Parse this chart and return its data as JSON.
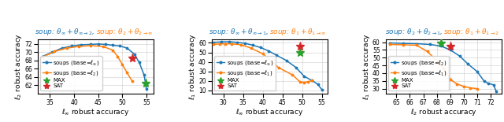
{
  "plots": [
    {
      "title_blue": "soup: $\\theta_{\\infty} + \\theta_{\\infty\\to2}$",
      "title_orange": "soup: $\\theta_2 + \\theta_{2\\to\\infty}$",
      "xlabel": "$\\ell_\\infty$ robust accuracy",
      "ylabel": "$\\ell_2$ robust accuracy",
      "xlim": [
        32.5,
        56.5
      ],
      "ylim": [
        60.0,
        73.2
      ],
      "xticks": [
        35,
        40,
        45,
        50,
        55
      ],
      "yticks": [
        62,
        64,
        66,
        68,
        70,
        72
      ],
      "legend_base1": "soups (base=$\\ell_\\infty$)",
      "legend_base2": "soups (base=$\\ell_2$)",
      "blue_x": [
        33.5,
        35.5,
        37.5,
        39.5,
        41.5,
        43.5,
        45.0,
        46.5,
        48.0,
        49.5,
        51.0,
        52.5,
        53.5,
        54.5,
        55.0
      ],
      "blue_y": [
        69.0,
        70.0,
        71.0,
        71.5,
        71.8,
        71.9,
        72.0,
        71.9,
        71.7,
        71.5,
        71.0,
        69.5,
        67.5,
        64.5,
        61.0
      ],
      "orange_x": [
        33.5,
        36.0,
        38.5,
        41.0,
        43.5,
        46.0,
        48.0,
        49.0,
        50.0,
        51.0,
        52.0
      ],
      "orange_y": [
        68.8,
        70.2,
        71.0,
        71.4,
        71.6,
        71.4,
        70.5,
        69.0,
        67.0,
        65.0,
        63.0
      ],
      "max_x": 54.8,
      "max_y": 62.5,
      "sat_x": 52.0,
      "sat_y": 68.5
    },
    {
      "title_blue": "soup: $\\theta_{\\infty} + \\theta_{\\infty\\to1}$",
      "title_orange": "soup: $\\theta_1 + \\theta_{1\\to\\infty}$",
      "xlabel": "$\\ell_\\infty$ robust accuracy",
      "ylabel": "$\\ell_1$ robust accuracy",
      "xlim": [
        27.0,
        56.5
      ],
      "ylim": [
        7.0,
        64.0
      ],
      "xticks": [
        30,
        35,
        40,
        45,
        50,
        55
      ],
      "yticks": [
        10,
        20,
        30,
        40,
        50,
        60
      ],
      "legend_base1": "soups (base=$\\ell_\\infty$)",
      "legend_base2": "soups (base=$\\ell_1$)",
      "blue_x": [
        27.5,
        29.5,
        31.5,
        33.5,
        35.5,
        37.5,
        39.5,
        41.5,
        43.5,
        46.0,
        48.5,
        50.5,
        52.5,
        54.0,
        55.0
      ],
      "blue_y": [
        60.5,
        61.0,
        61.2,
        60.5,
        59.5,
        57.5,
        55.0,
        51.5,
        47.0,
        41.5,
        34.0,
        25.0,
        20.5,
        16.5,
        11.0
      ],
      "orange_x": [
        27.5,
        29.0,
        30.5,
        32.0,
        34.5,
        37.0,
        40.0,
        44.0,
        47.5,
        49.5,
        50.5,
        51.5,
        52.5
      ],
      "orange_y": [
        58.5,
        58.8,
        59.0,
        59.0,
        58.0,
        54.5,
        48.5,
        34.0,
        26.5,
        19.0,
        18.5,
        19.0,
        20.5
      ],
      "max_x": 49.5,
      "max_y": 50.0,
      "sat_x": 49.5,
      "sat_y": 56.5
    },
    {
      "title_blue": "soup: $\\theta_2 + \\theta_{2\\to1}$",
      "title_orange": "soup: $\\theta_1 + \\theta_{1\\to2}$",
      "xlabel": "$\\ell_2$ robust accuracy",
      "ylabel": "$\\ell_1$ robust accuracy",
      "xlim": [
        64.2,
        72.8
      ],
      "ylim": [
        27.0,
        62.0
      ],
      "xticks": [
        65,
        66,
        67,
        68,
        69,
        70,
        71,
        72
      ],
      "yticks": [
        30,
        35,
        40,
        45,
        50,
        55,
        60
      ],
      "legend_base1": "soups (base=$\\ell_2$)",
      "legend_base2": "soups (base=$\\ell_1$)",
      "blue_x": [
        64.5,
        65.5,
        66.5,
        67.5,
        68.3,
        69.0,
        69.7,
        70.3,
        71.0,
        71.5,
        71.8,
        72.2,
        72.4
      ],
      "blue_y": [
        59.5,
        59.2,
        59.0,
        58.5,
        57.5,
        55.0,
        51.0,
        46.0,
        41.0,
        35.0,
        33.5,
        32.5,
        28.5
      ],
      "orange_x": [
        64.5,
        65.5,
        66.5,
        67.3,
        68.0,
        68.5,
        69.0,
        69.5,
        70.0,
        70.5,
        71.0
      ],
      "orange_y": [
        58.5,
        58.3,
        58.0,
        54.0,
        48.0,
        43.0,
        36.0,
        33.0,
        31.5,
        30.5,
        30.0
      ],
      "max_x": 68.3,
      "max_y": 59.5,
      "sat_x": 69.0,
      "sat_y": 57.0
    }
  ],
  "blue_color": "#1f77b4",
  "orange_color": "#ff7f0e",
  "green_color": "#2ca02c",
  "red_color": "#d62728",
  "title_blue_color": "#1f77b4",
  "title_orange_color": "#ff7f0e",
  "title_fontsize": 6.5,
  "legend_fontsize": 5.0,
  "tick_fontsize": 5.5,
  "axis_label_fontsize": 6.5
}
